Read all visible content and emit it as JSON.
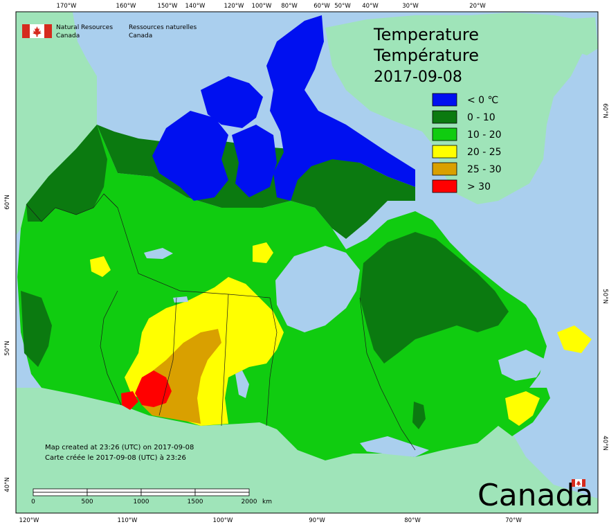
{
  "header": {
    "org_en_line1": "Natural Resources",
    "org_en_line2": "Canada",
    "org_fr_line1": "Ressources naturelles",
    "org_fr_line2": "Canada"
  },
  "map": {
    "title_en": "Temperature",
    "title_fr": "Température",
    "date": "2017-09-08"
  },
  "legend": [
    {
      "label": "< 0 ℃",
      "color": "#0010f0"
    },
    {
      "label": "0 - 10",
      "color": "#0b7a10"
    },
    {
      "label": "10 - 20",
      "color": "#10cc10"
    },
    {
      "label": "20 - 25",
      "color": "#ffff00"
    },
    {
      "label": "25 - 30",
      "color": "#d9a000"
    },
    {
      "label": "> 30",
      "color": "#ff0000"
    }
  ],
  "colors": {
    "ocean": "#aacfee",
    "foreign_land": "#9fe4b9",
    "province_border": "#1a1a1a"
  },
  "graticule": {
    "top": [
      "170°W",
      "160°W",
      "150°W",
      "140°W",
      "120°W",
      "100°W",
      "80°W",
      "60°W",
      "50°W",
      "40°W",
      "30°W",
      "20°W"
    ],
    "bottom": [
      "120°W",
      "110°W",
      "100°W",
      "90°W",
      "80°W",
      "70°W"
    ],
    "left": [
      "60°N",
      "50°N",
      "40°N"
    ],
    "right": [
      "60°N",
      "50°N",
      "40°N"
    ]
  },
  "footer": {
    "created_en": "Map created at 23:26 (UTC) on 2017-09-08",
    "created_fr": "Carte créée le 2017-09-08 (UTC) à 23:26"
  },
  "scale": {
    "ticks": [
      "0",
      "500",
      "1000",
      "1500",
      "2000"
    ],
    "unit": "km"
  },
  "wordmark": "Canada"
}
